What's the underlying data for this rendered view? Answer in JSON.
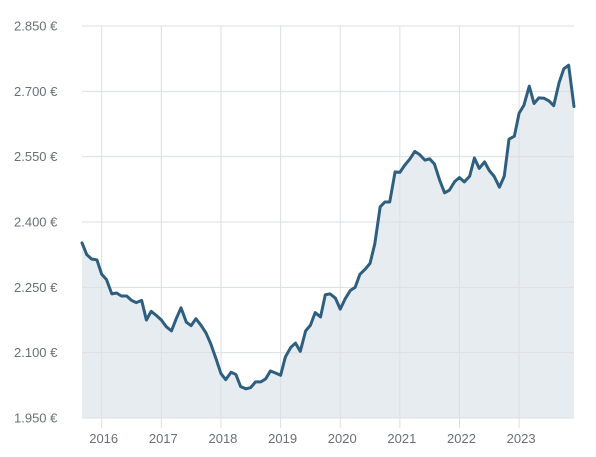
{
  "chart_data": {
    "type": "area",
    "title": "",
    "xlabel": "",
    "ylabel": "",
    "x_tick_labels": [
      "2016",
      "2017",
      "2018",
      "2019",
      "2020",
      "2021",
      "2022",
      "2023"
    ],
    "y_tick_labels": [
      "1.950 €",
      "2.100 €",
      "2.250 €",
      "2.400 €",
      "2.550 €",
      "2.700 €",
      "2.850 €"
    ],
    "y_ticks": [
      1950,
      2100,
      2250,
      2400,
      2550,
      2700,
      2850
    ],
    "x_ticks": [
      2016,
      2017,
      2018,
      2019,
      2020,
      2021,
      2022,
      2023
    ],
    "ylim": [
      1950,
      2850
    ],
    "xlim": [
      2015.67,
      2023.92
    ],
    "grid": true,
    "colors": {
      "line": "#2e5f7f",
      "area": "#e7ecf1",
      "grid": "#dcdfe3"
    },
    "series": [
      {
        "x": [
          2015.67,
          2015.75,
          2015.83,
          2015.92,
          2016.0,
          2016.08,
          2016.17,
          2016.25,
          2016.33,
          2016.42,
          2016.5,
          2016.58,
          2016.67,
          2016.75,
          2016.83,
          2016.92,
          2017.0,
          2017.08,
          2017.17,
          2017.25,
          2017.33,
          2017.42,
          2017.5,
          2017.58,
          2017.67,
          2017.75,
          2017.83,
          2017.92,
          2018.0,
          2018.08,
          2018.17,
          2018.25,
          2018.33,
          2018.42,
          2018.5,
          2018.58,
          2018.67,
          2018.75,
          2018.83,
          2018.92,
          2019.0,
          2019.08,
          2019.17,
          2019.25,
          2019.33,
          2019.42,
          2019.5,
          2019.58,
          2019.67,
          2019.75,
          2019.83,
          2019.92,
          2020.0,
          2020.08,
          2020.17,
          2020.25,
          2020.33,
          2020.42,
          2020.5,
          2020.58,
          2020.67,
          2020.75,
          2020.83,
          2020.92,
          2021.0,
          2021.08,
          2021.17,
          2021.25,
          2021.33,
          2021.42,
          2021.5,
          2021.58,
          2021.67,
          2021.75,
          2021.83,
          2021.92,
          2022.0,
          2022.08,
          2022.17,
          2022.25,
          2022.33,
          2022.42,
          2022.5,
          2022.58,
          2022.67,
          2022.75,
          2022.83,
          2022.92,
          2023.0,
          2023.08,
          2023.17,
          2023.25,
          2023.33,
          2023.42,
          2023.5,
          2023.58,
          2023.67,
          2023.75,
          2023.83,
          2023.92
        ],
        "values": [
          2352,
          2325,
          2315,
          2313,
          2280,
          2268,
          2235,
          2237,
          2230,
          2230,
          2220,
          2215,
          2220,
          2175,
          2195,
          2185,
          2175,
          2160,
          2150,
          2178,
          2203,
          2170,
          2162,
          2178,
          2162,
          2145,
          2120,
          2085,
          2052,
          2038,
          2055,
          2050,
          2022,
          2017,
          2020,
          2033,
          2033,
          2040,
          2058,
          2053,
          2048,
          2090,
          2112,
          2122,
          2103,
          2150,
          2163,
          2192,
          2182,
          2233,
          2235,
          2225,
          2200,
          2223,
          2243,
          2250,
          2280,
          2292,
          2305,
          2350,
          2435,
          2446,
          2446,
          2515,
          2514,
          2530,
          2545,
          2562,
          2555,
          2542,
          2545,
          2533,
          2495,
          2467,
          2473,
          2493,
          2502,
          2492,
          2505,
          2547,
          2523,
          2538,
          2518,
          2505,
          2480,
          2505,
          2590,
          2597,
          2650,
          2668,
          2712,
          2672,
          2685,
          2684,
          2678,
          2667,
          2720,
          2752,
          2760,
          2665
        ]
      }
    ]
  }
}
